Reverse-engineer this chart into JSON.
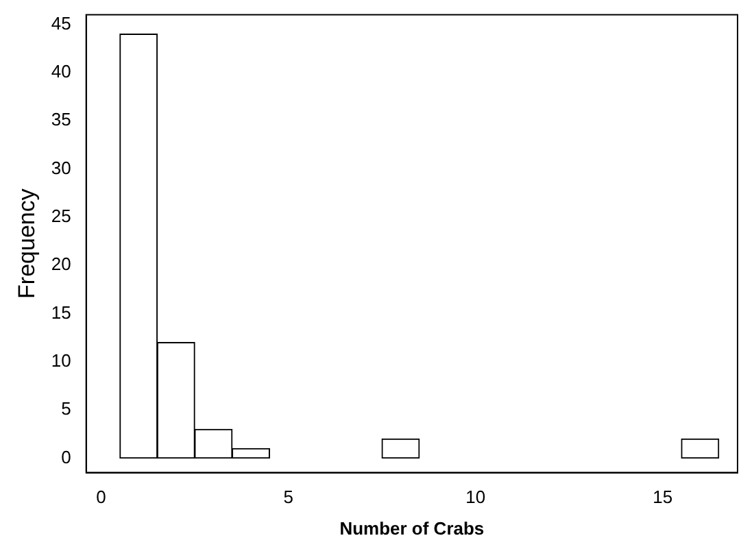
{
  "chart_data": {
    "type": "histogram",
    "xlabel": "Number of Crabs",
    "ylabel": "Frequency",
    "bins": [
      0.5,
      1.5,
      2.5,
      3.5,
      4.5,
      5.5,
      6.5,
      7.5,
      8.5,
      9.5,
      10.5,
      11.5,
      12.5,
      13.5,
      14.5,
      15.5,
      16.5
    ],
    "values": [
      44,
      12,
      3,
      1,
      0,
      0,
      0,
      2,
      0,
      0,
      0,
      0,
      0,
      0,
      0,
      2
    ],
    "color": "#ffffff",
    "xlim": [
      -0.4,
      17
    ],
    "xticks": [
      0,
      5,
      10,
      15
    ],
    "ylim": [
      -1.5,
      46
    ],
    "yticks": [
      0,
      5,
      10,
      15,
      20,
      25,
      30,
      35,
      40,
      45
    ],
    "grid": false,
    "legend": false
  }
}
